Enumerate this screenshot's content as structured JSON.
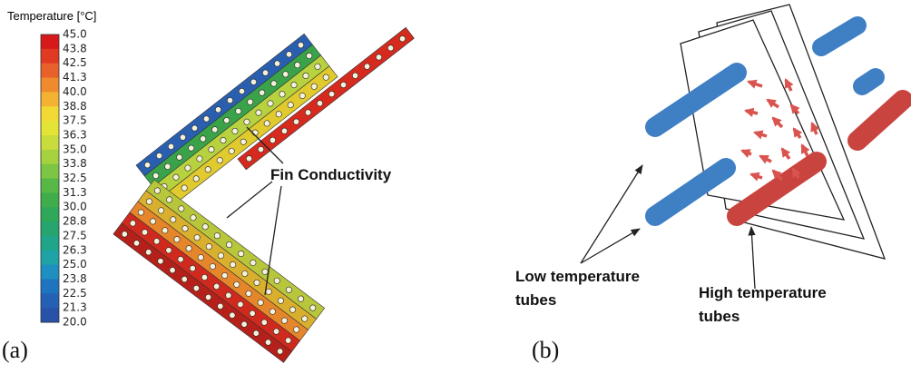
{
  "panel_a": {
    "label": "(a)",
    "colorbar": {
      "title": "Temperature [°C]",
      "ticks": [
        "45.0",
        "43.8",
        "42.5",
        "41.3",
        "40.0",
        "38.8",
        "37.5",
        "36.3",
        "35.0",
        "33.8",
        "32.5",
        "31.3",
        "30.0",
        "28.8",
        "27.5",
        "26.3",
        "25.0",
        "23.8",
        "22.5",
        "21.3",
        "20.0"
      ]
    },
    "annotation": "Fin Conductivity"
  },
  "panel_b": {
    "label": "(b)",
    "low_label": [
      "Low temperature",
      "tubes"
    ],
    "high_label": [
      "High temperature",
      "tubes"
    ]
  }
}
